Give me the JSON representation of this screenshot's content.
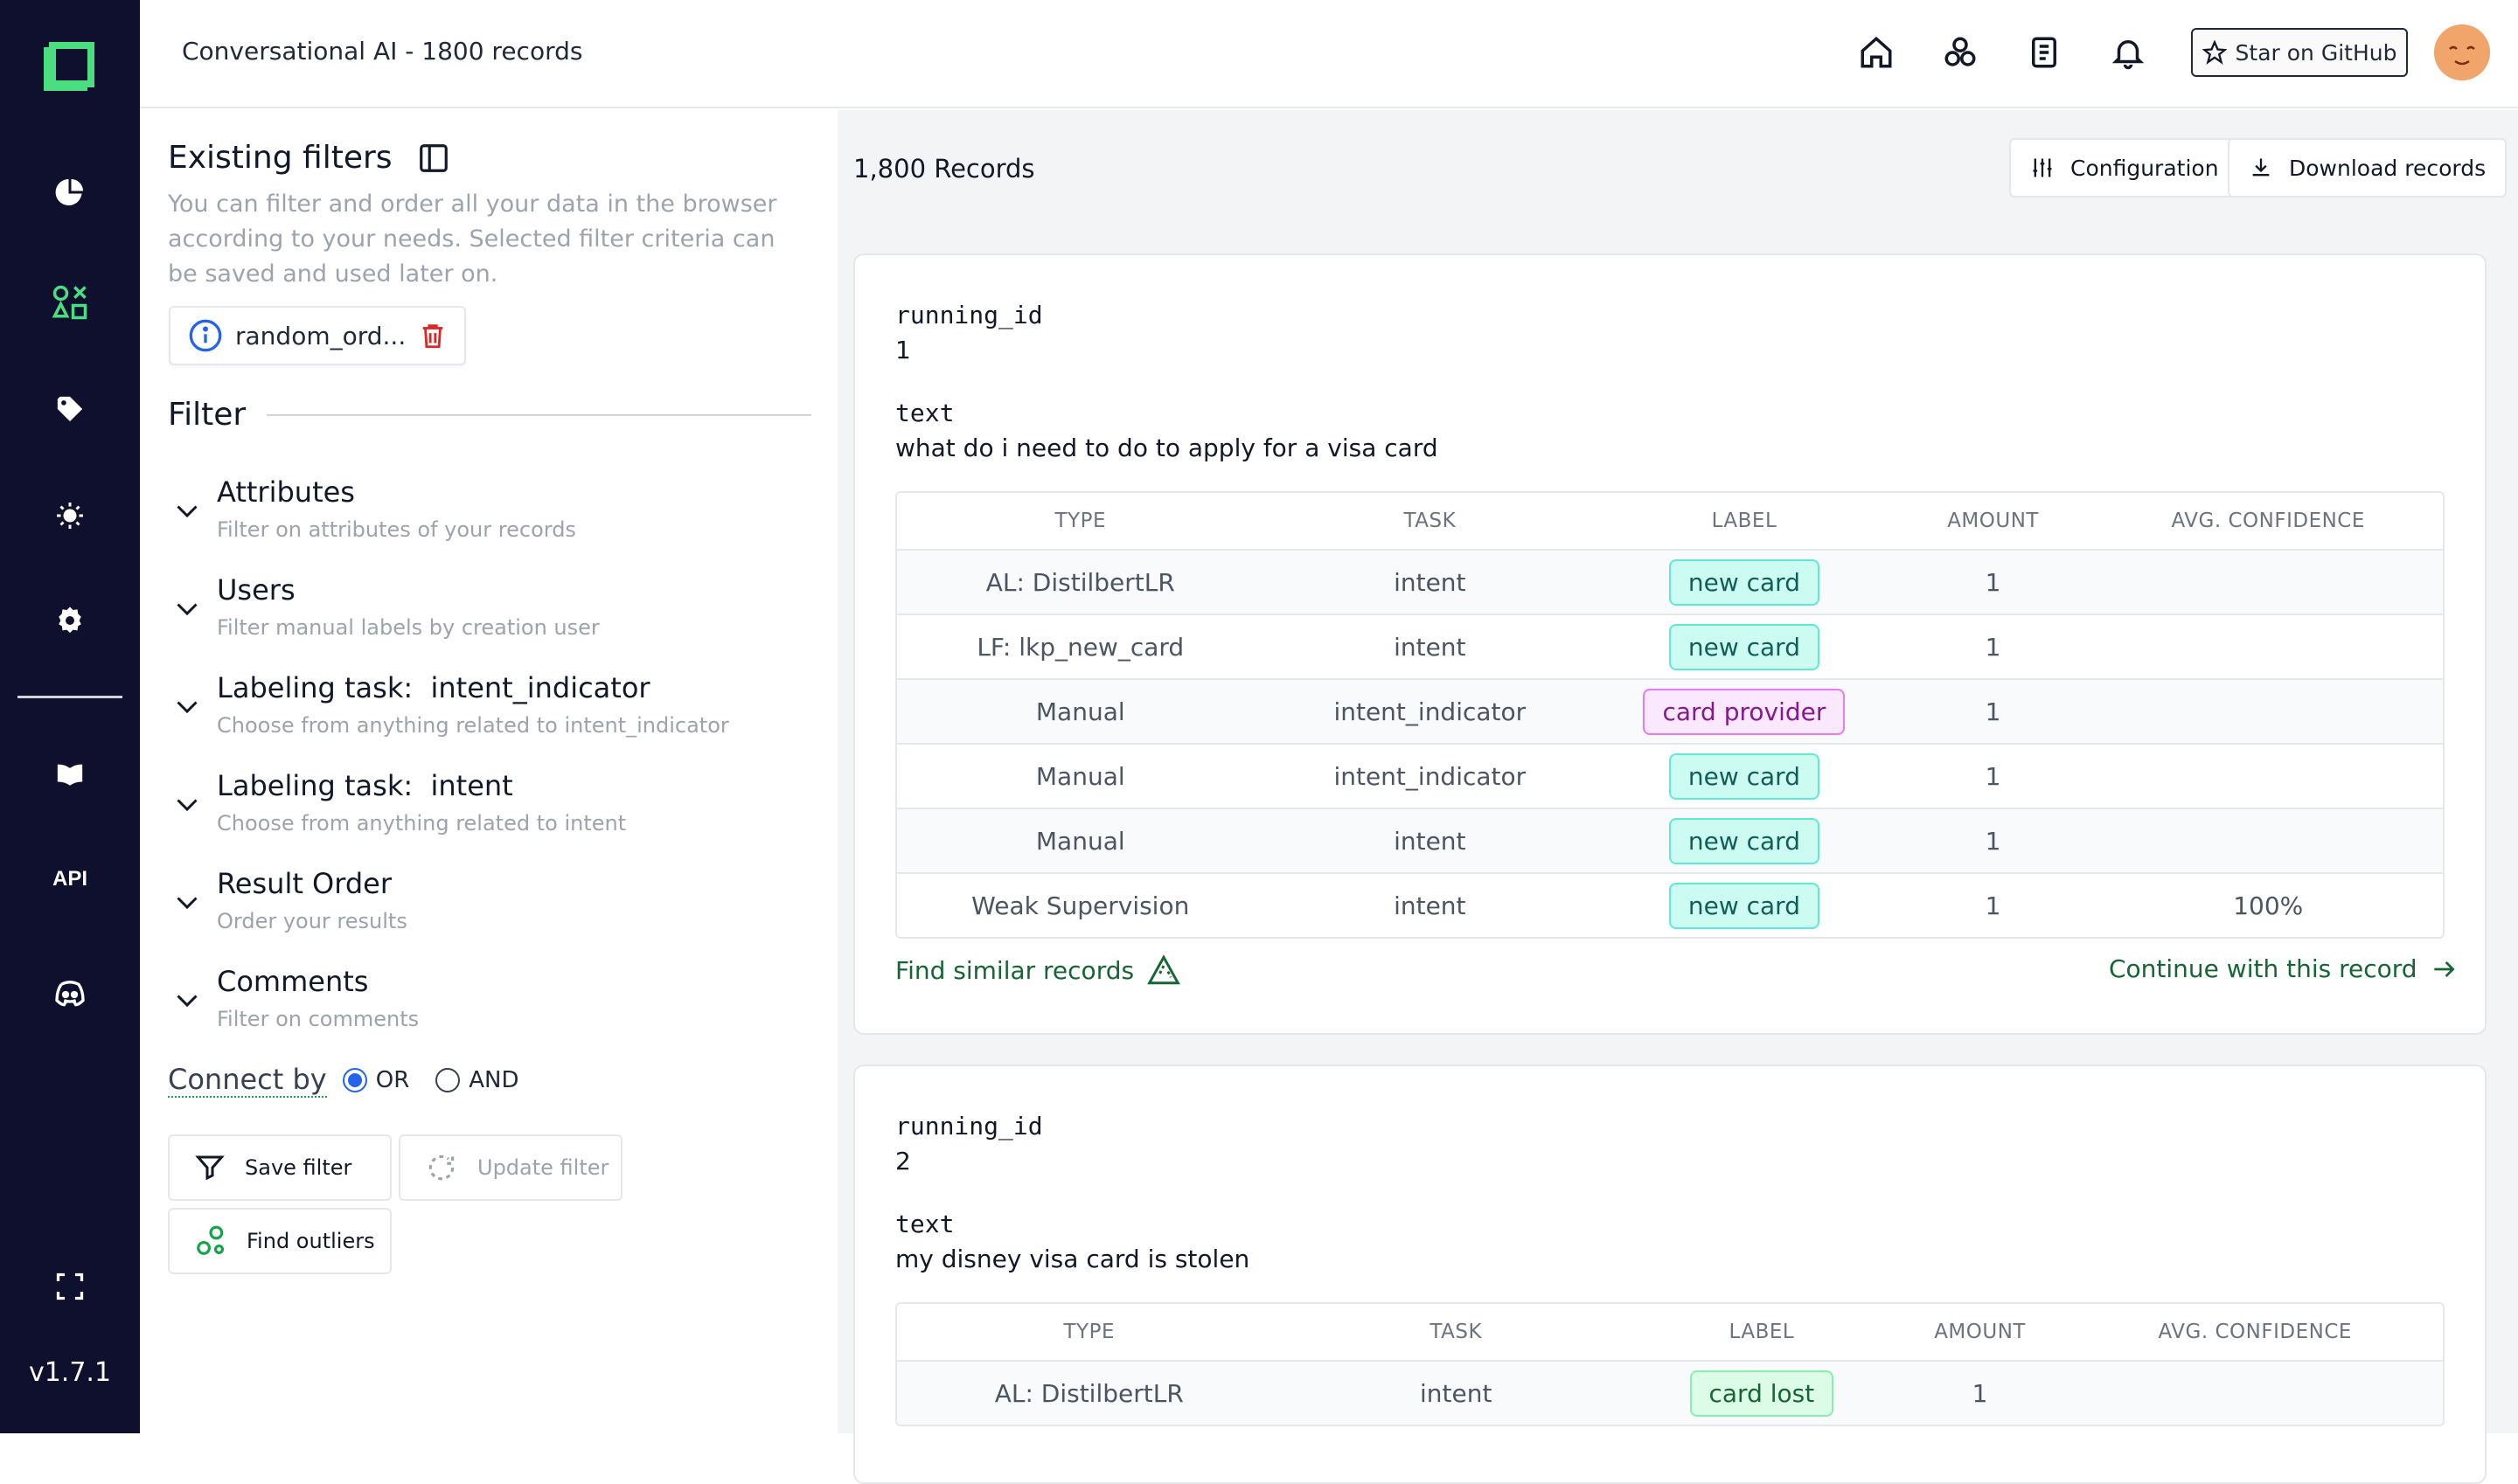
{
  "topbar": {
    "title": "Conversational AI - 1800 records",
    "star_label": "Star on GitHub"
  },
  "sidebar": {
    "version": "v1.7.1",
    "api_label": "API"
  },
  "filters": {
    "title": "Existing filters",
    "description": "You can filter and order all your data in the browser according to your needs. Selected filter criteria can be saved and used later on.",
    "chip_label": "random_ord...",
    "filter_heading": "Filter",
    "accordions": [
      {
        "title": "Attributes",
        "desc": "Filter on attributes of your records"
      },
      {
        "title": "Users",
        "desc": "Filter manual labels by creation user"
      },
      {
        "title": "Labeling task:  intent_indicator",
        "desc": "Choose from anything related to intent_indicator"
      },
      {
        "title": "Labeling task:  intent",
        "desc": "Choose from anything related to intent"
      },
      {
        "title": "Result Order",
        "desc": "Order your results"
      },
      {
        "title": "Comments",
        "desc": "Filter on comments"
      }
    ],
    "connect_label": "Connect by",
    "or_label": "OR",
    "and_label": "AND",
    "save_filter": "Save filter",
    "update_filter": "Update filter",
    "find_outliers": "Find outliers"
  },
  "content": {
    "records_count": "1,800 Records",
    "configuration": "Configuration",
    "download": "Download records",
    "table_headers": [
      "TYPE",
      "TASK",
      "LABEL",
      "AMOUNT",
      "AVG. CONFIDENCE"
    ],
    "find_similar": "Find similar records",
    "continue": "Continue with this record",
    "records": [
      {
        "field1": "running_id",
        "value1": "1",
        "field2": "text",
        "value2": "what do i need to do to apply for a visa card",
        "rows": [
          {
            "type": "AL: DistilbertLR",
            "task": "intent",
            "label": "new card",
            "color": "teal",
            "amount": "1",
            "conf": ""
          },
          {
            "type": "LF: lkp_new_card",
            "task": "intent",
            "label": "new card",
            "color": "teal",
            "amount": "1",
            "conf": ""
          },
          {
            "type": "Manual",
            "task": "intent_indicator",
            "label": "card provider",
            "color": "purple",
            "amount": "1",
            "conf": ""
          },
          {
            "type": "Manual",
            "task": "intent_indicator",
            "label": "new card",
            "color": "teal",
            "amount": "1",
            "conf": ""
          },
          {
            "type": "Manual",
            "task": "intent",
            "label": "new card",
            "color": "teal",
            "amount": "1",
            "conf": ""
          },
          {
            "type": "Weak Supervision",
            "task": "intent",
            "label": "new card",
            "color": "teal",
            "amount": "1",
            "conf": "100%"
          }
        ]
      },
      {
        "field1": "running_id",
        "value1": "2",
        "field2": "text",
        "value2": "my disney visa card is stolen",
        "rows": [
          {
            "type": "AL: DistilbertLR",
            "task": "intent",
            "label": "card lost",
            "color": "green",
            "amount": "1",
            "conf": ""
          }
        ]
      }
    ]
  }
}
